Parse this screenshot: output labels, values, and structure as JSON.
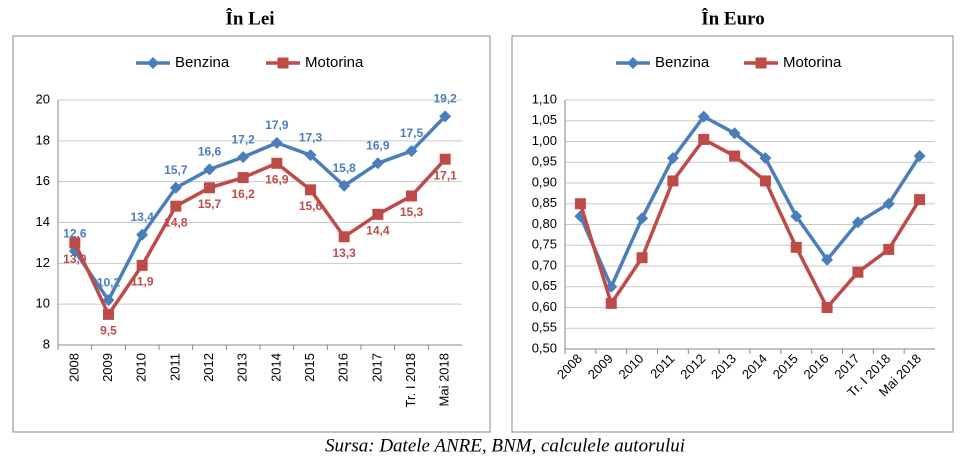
{
  "chart_data": [
    {
      "type": "line",
      "title": "În Lei",
      "categories": [
        "2008",
        "2009",
        "2010",
        "2011",
        "2012",
        "2013",
        "2014",
        "2015",
        "2016",
        "2017",
        "Tr. I 2018",
        "Mai 2018"
      ],
      "series": [
        {
          "name": "Benzina",
          "color": "#4a7ebb",
          "marker": "diamond",
          "values": [
            12.6,
            10.2,
            13.4,
            15.7,
            16.6,
            17.2,
            17.9,
            17.3,
            15.8,
            16.9,
            17.5,
            19.2
          ],
          "value_labels": [
            "12,6",
            "10,2",
            "13,4",
            "15,7",
            "16,6",
            "17,2",
            "17,9",
            "17,3",
            "15,8",
            "16,9",
            "17,5",
            "19,2"
          ]
        },
        {
          "name": "Motorina",
          "color": "#be4b48",
          "marker": "square",
          "values": [
            13.0,
            9.5,
            11.9,
            14.8,
            15.7,
            16.2,
            16.9,
            15.6,
            13.3,
            14.4,
            15.3,
            17.1
          ],
          "value_labels": [
            "13,0",
            "9,5",
            "11,9",
            "14,8",
            "15,7",
            "16,2",
            "16,9",
            "15,6",
            "13,3",
            "14,4",
            "15,3",
            "17,1"
          ]
        }
      ],
      "ylim": [
        8,
        20
      ],
      "yticks": [
        8,
        10,
        12,
        14,
        16,
        18,
        20
      ],
      "grid": true,
      "legend": "top"
    },
    {
      "type": "line",
      "title": "În Euro",
      "categories": [
        "2008",
        "2009",
        "2010",
        "2011",
        "2012",
        "2013",
        "2014",
        "2015",
        "2016",
        "2017",
        "Tr. I 2018",
        "Mai 2018"
      ],
      "series": [
        {
          "name": "Benzina",
          "color": "#4a7ebb",
          "marker": "diamond",
          "values": [
            0.82,
            0.65,
            0.815,
            0.96,
            1.06,
            1.02,
            0.96,
            0.82,
            0.715,
            0.805,
            0.85,
            0.965
          ]
        },
        {
          "name": "Motorina",
          "color": "#be4b48",
          "marker": "square",
          "values": [
            0.85,
            0.61,
            0.72,
            0.905,
            1.005,
            0.965,
            0.905,
            0.745,
            0.6,
            0.685,
            0.74,
            0.86
          ]
        }
      ],
      "ylim": [
        0.5,
        1.1
      ],
      "yticks": [
        {
          "value": 0.5,
          "label": "0,50"
        },
        {
          "value": 0.55,
          "label": "0,55"
        },
        {
          "value": 0.6,
          "label": "0,60"
        },
        {
          "value": 0.65,
          "label": "0,65"
        },
        {
          "value": 0.7,
          "label": "0,70"
        },
        {
          "value": 0.75,
          "label": "0,75"
        },
        {
          "value": 0.8,
          "label": "0,80"
        },
        {
          "value": 0.85,
          "label": "0,85"
        },
        {
          "value": 0.9,
          "label": "0,90"
        },
        {
          "value": 0.95,
          "label": "0,95"
        },
        {
          "value": 1.0,
          "label": "1,00"
        },
        {
          "value": 1.05,
          "label": "1,05"
        },
        {
          "value": 1.1,
          "label": "1,10"
        }
      ],
      "grid": true,
      "legend": "top"
    }
  ],
  "source": "Sursa: Datele ANRE, BNM, calculele autorului"
}
